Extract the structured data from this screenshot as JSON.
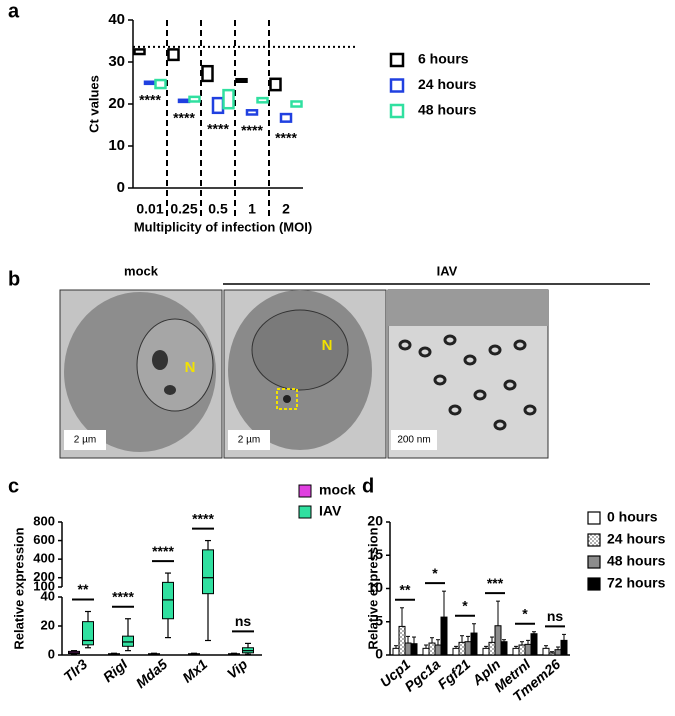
{
  "panel_labels": [
    "a",
    "b",
    "c",
    "d"
  ],
  "micrographs": {
    "header_mock": "mock",
    "header_iav": "IAV",
    "scale_bars": [
      "2 µm",
      "2 µm",
      "200 nm"
    ],
    "nucleus_labels": [
      "N",
      "N"
    ]
  },
  "chart_data": [
    {
      "type": "floating_bar",
      "ylabel": "Ct values",
      "xlabel": "Multiplicity of infection (MOI)",
      "categories": [
        "0.01",
        "0.25",
        "0.5",
        "1",
        "2"
      ],
      "series": [
        {
          "name": "6 hours",
          "color": "#000000",
          "low": [
            31.9,
            30.5,
            25.5,
            25.3,
            23.3
          ],
          "high": [
            33.0,
            33.0,
            29.0,
            25.9,
            26.0
          ]
        },
        {
          "name": "24 hours",
          "color": "#2040e0",
          "low": [
            24.8,
            20.5,
            17.9,
            17.5,
            15.8
          ],
          "high": [
            25.3,
            21.0,
            21.4,
            18.5,
            17.6
          ]
        },
        {
          "name": "48 hours",
          "color": "#30e0a0",
          "low": [
            23.8,
            20.6,
            19.0,
            20.4,
            19.4
          ],
          "high": [
            25.7,
            21.7,
            23.3,
            21.4,
            20.6
          ]
        }
      ],
      "ylim": [
        0,
        40
      ],
      "yticks": [
        0,
        10,
        20,
        30,
        40
      ],
      "reference_line": 33.6,
      "annotations": [
        "****",
        "****",
        "****",
        "****",
        "****"
      ]
    },
    {
      "type": "box",
      "ylabel": "Relative expression",
      "categories": [
        "Tlr3",
        "RigI",
        "Mda5",
        "Mx1",
        "Vip"
      ],
      "series": [
        {
          "name": "mock",
          "color": "#e040e0",
          "min": [
            0.5,
            0.2,
            0.2,
            0.2,
            0.2
          ],
          "q1": [
            1,
            0.4,
            0.4,
            0.4,
            0.4
          ],
          "median": [
            1.5,
            0.6,
            0.6,
            0.6,
            0.6
          ],
          "q3": [
            2.5,
            0.9,
            0.9,
            0.9,
            0.9
          ],
          "max": [
            3,
            1.2,
            1.2,
            1.2,
            1.2
          ]
        },
        {
          "name": "IAV",
          "color": "#30e0a0",
          "min": [
            5,
            3,
            12,
            10,
            0.5
          ],
          "q1": [
            7,
            6,
            25,
            60,
            1.5
          ],
          "median": [
            10,
            9,
            38,
            200,
            3
          ],
          "q3": [
            23,
            13,
            150,
            500,
            5
          ],
          "max": [
            30,
            25,
            250,
            600,
            8
          ]
        }
      ],
      "ylim": [
        0,
        40
      ],
      "yticks": [
        0,
        20,
        40
      ],
      "upper_ylim": [
        100,
        800
      ],
      "upper_yticks": [
        100,
        200,
        400,
        600,
        800
      ],
      "annotations": [
        "**",
        "****",
        "****",
        "****",
        "ns"
      ]
    },
    {
      "type": "grouped_bar",
      "ylabel": "Relative expression",
      "categories": [
        "Ucp1",
        "Pgc1a",
        "Fgf21",
        "Apln",
        "Metrnl",
        "Tmem26"
      ],
      "series": [
        {
          "name": "0 hours",
          "color": "#ffffff",
          "values": [
            1,
            1,
            1,
            1,
            1,
            1
          ],
          "errors": [
            0.4,
            0.5,
            0.3,
            0.3,
            0.3,
            0.4
          ]
        },
        {
          "name": "24 hours",
          "color": "#b0b0b0",
          "pattern": "checkered",
          "values": [
            4.3,
            1.8,
            1.9,
            1.9,
            1.5,
            0.3
          ],
          "errors": [
            2.8,
            0.8,
            1.0,
            0.8,
            0.5,
            0.2
          ]
        },
        {
          "name": "48 hours",
          "color": "#8c8c8c",
          "values": [
            1.8,
            1.5,
            2.0,
            4.4,
            1.6,
            0.8
          ],
          "errors": [
            1.0,
            0.8,
            0.8,
            3.7,
            0.6,
            0.4
          ]
        },
        {
          "name": "72 hours",
          "color": "#000000",
          "values": [
            1.7,
            5.7,
            3.3,
            2.0,
            3.2,
            2.2
          ],
          "errors": [
            1.0,
            3.9,
            1.4,
            0.3,
            0.3,
            0.9
          ]
        }
      ],
      "ylim": [
        0,
        20
      ],
      "yticks": [
        0,
        5,
        10,
        15,
        20
      ],
      "annotations": [
        "**",
        "*",
        "*",
        "***",
        "*",
        "ns"
      ]
    }
  ]
}
